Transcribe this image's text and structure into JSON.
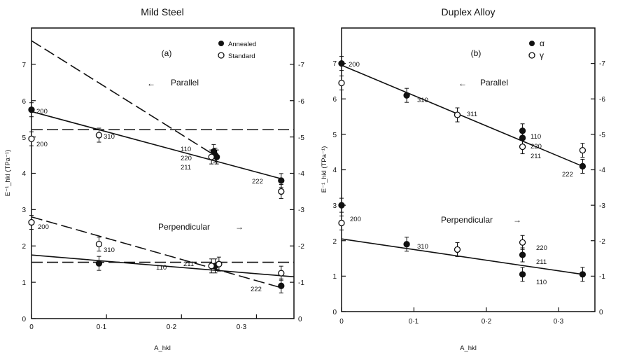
{
  "charts": [
    {
      "title": "Mild Steel",
      "panel_label": "(a)",
      "xlabel": "A_hkl",
      "ylabel": "E⁻¹_hkl (TPa⁻¹)",
      "x_ticks": [
        "0",
        "0·1",
        "0·2",
        "0·3"
      ],
      "y_ticks": [
        "0",
        "1",
        "2",
        "3",
        "4",
        "5",
        "6",
        "7"
      ],
      "y_ticks_right": [
        "0",
        "-1",
        "-2",
        "-3",
        "-4",
        "-5",
        "-6",
        "-7"
      ],
      "legend": [
        {
          "label": "Annealed",
          "marker": "filled"
        },
        {
          "label": "Standard",
          "marker": "open"
        }
      ],
      "annotations": [
        {
          "text": "Parallel",
          "arrow": "←"
        },
        {
          "text": "Perpendicular",
          "arrow": "→"
        }
      ],
      "labels": [
        "200",
        "200",
        "310",
        "110",
        "220",
        "211",
        "222",
        "200",
        "310",
        "110",
        "211",
        "222"
      ]
    },
    {
      "title": "Duplex Alloy",
      "panel_label": "(b)",
      "xlabel": "A_hkl",
      "ylabel": "E⁻¹_hkl (TPa⁻¹)",
      "x_ticks": [
        "0",
        "0·1",
        "0·2",
        "0·3"
      ],
      "y_ticks": [
        "0",
        "1",
        "2",
        "3",
        "4",
        "5",
        "6",
        "7"
      ],
      "y_ticks_right": [
        "0",
        "-1",
        "-2",
        "-3",
        "-4",
        "-5",
        "-6",
        "-7"
      ],
      "legend": [
        {
          "label": "α",
          "marker": "filled"
        },
        {
          "label": "γ",
          "marker": "open"
        }
      ],
      "annotations": [
        {
          "text": "Parallel",
          "arrow": "←"
        },
        {
          "text": "Perpendicular",
          "arrow": "→"
        }
      ],
      "labels": [
        "200",
        "310",
        "311",
        "110",
        "220",
        "211",
        "222",
        "200",
        "310",
        "220",
        "211",
        "110"
      ]
    }
  ],
  "chart_data": [
    {
      "type": "scatter",
      "title": "Mild Steel",
      "xlabel": "A_hkl",
      "ylabel": "E⁻¹_hkl (TPa⁻¹)",
      "xlim": [
        0,
        0.35
      ],
      "ylim": [
        0,
        8
      ],
      "series": [
        {
          "name": "Annealed",
          "marker": "filled",
          "points": [
            {
              "x": 0,
              "y": 5.75,
              "label": "200"
            },
            {
              "x": 0.243,
              "y": 4.6,
              "label": "110"
            },
            {
              "x": 0.245,
              "y": 4.5,
              "label": "220"
            },
            {
              "x": 0.247,
              "y": 4.45,
              "label": "211"
            },
            {
              "x": 0.333,
              "y": 3.8,
              "label": "222"
            },
            {
              "x": 0.09,
              "y": 1.52
            },
            {
              "x": 0.245,
              "y": 1.45
            },
            {
              "x": 0.333,
              "y": 0.9,
              "label": "222"
            }
          ]
        },
        {
          "name": "Standard",
          "marker": "open",
          "points": [
            {
              "x": 0,
              "y": 4.95,
              "label": "200"
            },
            {
              "x": 0.09,
              "y": 5.05,
              "label": "310"
            },
            {
              "x": 0.24,
              "y": 4.45,
              "label": "110"
            },
            {
              "x": 0.333,
              "y": 3.5,
              "label": "222"
            },
            {
              "x": 0,
              "y": 2.65,
              "label": "200"
            },
            {
              "x": 0.09,
              "y": 2.05,
              "label": "310"
            },
            {
              "x": 0.24,
              "y": 1.45,
              "label": "110"
            },
            {
              "x": 0.25,
              "y": 1.5,
              "label": "211"
            },
            {
              "x": 0.333,
              "y": 1.25
            }
          ]
        }
      ],
      "lines": [
        {
          "style": "solid",
          "x": [
            0,
            0.333
          ],
          "y": [
            5.7,
            3.85
          ]
        },
        {
          "style": "dashed",
          "x": [
            0,
            0.24
          ],
          "y": [
            7.65,
            4.55
          ]
        },
        {
          "style": "dashed",
          "x": [
            0,
            0.35
          ],
          "y": [
            5.2,
            5.2
          ]
        },
        {
          "style": "dashed",
          "x": [
            0,
            0.333
          ],
          "y": [
            2.8,
            0.85
          ]
        },
        {
          "style": "solid",
          "x": [
            0,
            0.35
          ],
          "y": [
            1.75,
            1.15
          ]
        },
        {
          "style": "dashed",
          "x": [
            0,
            0.35
          ],
          "y": [
            1.55,
            1.55
          ]
        }
      ]
    },
    {
      "type": "scatter",
      "title": "Duplex Alloy",
      "xlabel": "A_hkl",
      "ylabel": "E⁻¹_hkl (TPa⁻¹)",
      "xlim": [
        0,
        0.35
      ],
      "ylim": [
        0,
        8
      ],
      "series": [
        {
          "name": "α",
          "marker": "filled",
          "points": [
            {
              "x": 0,
              "y": 7.0,
              "label": "200"
            },
            {
              "x": 0.09,
              "y": 6.1,
              "label": "310"
            },
            {
              "x": 0.25,
              "y": 5.1,
              "label": "110"
            },
            {
              "x": 0.25,
              "y": 4.9,
              "label": "220"
            },
            {
              "x": 0.333,
              "y": 4.1,
              "label": "222"
            },
            {
              "x": 0,
              "y": 3.0,
              "label": "200"
            },
            {
              "x": 0.09,
              "y": 1.9,
              "label": "310"
            },
            {
              "x": 0.25,
              "y": 1.6,
              "label": "211"
            },
            {
              "x": 0.25,
              "y": 1.05,
              "label": "110"
            },
            {
              "x": 0.333,
              "y": 1.05
            }
          ]
        },
        {
          "name": "γ",
          "marker": "open",
          "points": [
            {
              "x": 0,
              "y": 6.45
            },
            {
              "x": 0.16,
              "y": 5.55,
              "label": "311"
            },
            {
              "x": 0.25,
              "y": 4.65,
              "label": "211"
            },
            {
              "x": 0.333,
              "y": 4.55
            },
            {
              "x": 0,
              "y": 2.5
            },
            {
              "x": 0.16,
              "y": 1.75
            },
            {
              "x": 0.25,
              "y": 1.95,
              "label": "220"
            }
          ]
        }
      ],
      "lines": [
        {
          "style": "solid",
          "x": [
            0,
            0.333
          ],
          "y": [
            6.95,
            4.1
          ]
        },
        {
          "style": "solid",
          "x": [
            0,
            0.333
          ],
          "y": [
            2.05,
            1.05
          ]
        }
      ]
    }
  ]
}
